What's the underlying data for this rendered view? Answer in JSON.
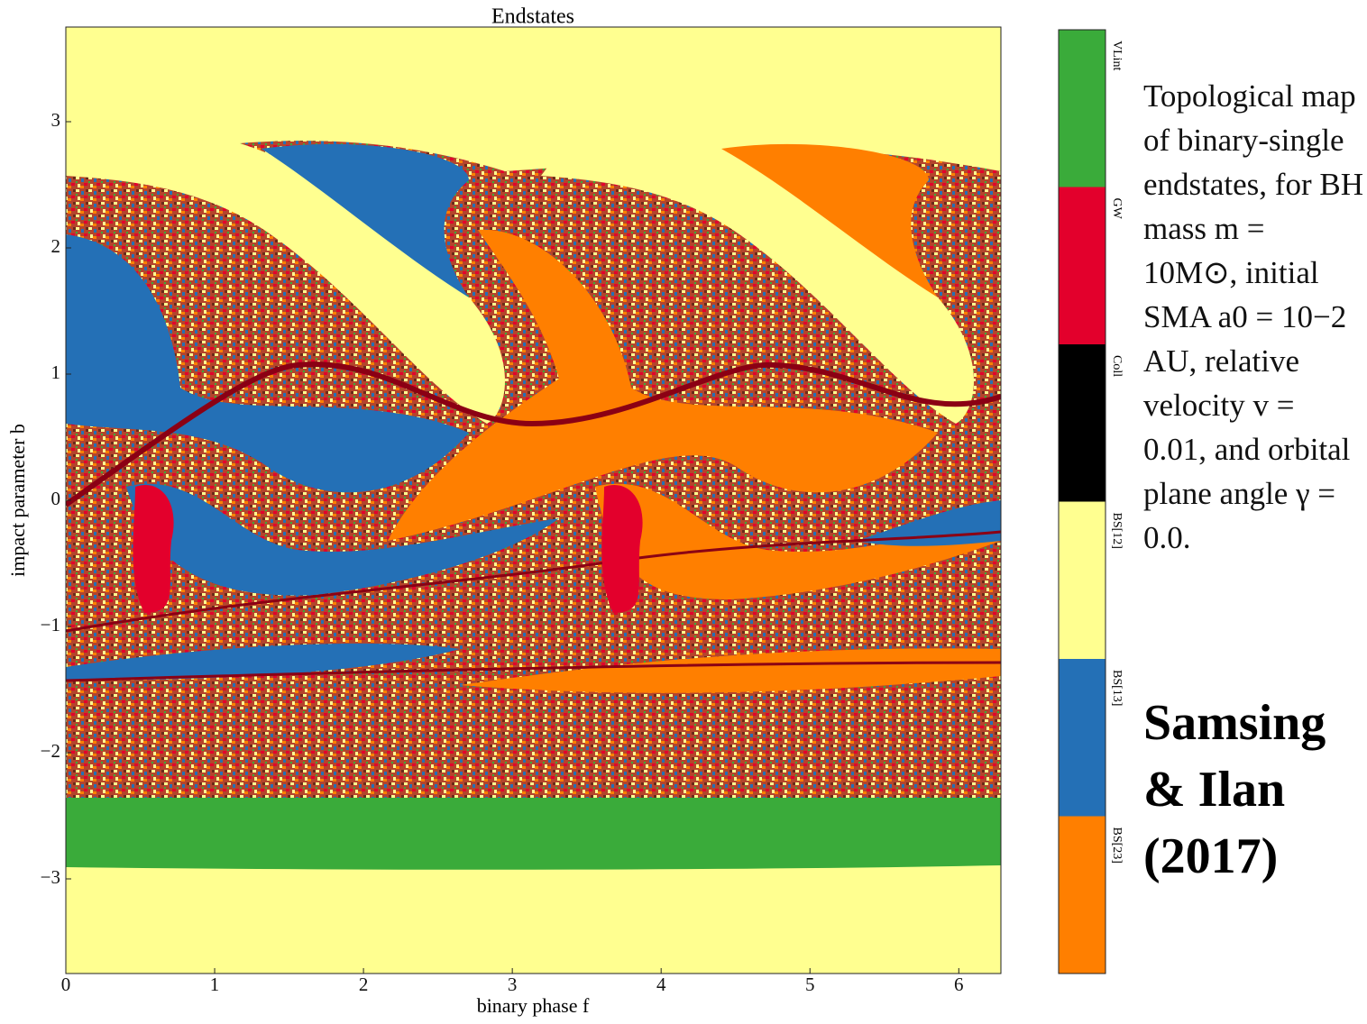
{
  "chart_data": {
    "type": "categorical_map",
    "title": "Endstates",
    "xlabel": "binary phase f",
    "ylabel": "impact parameter b",
    "xlim": [
      0,
      6.283
    ],
    "ylim": [
      -3.75,
      3.75
    ],
    "xticks": [
      0,
      1,
      2,
      3,
      4,
      5,
      6
    ],
    "yticks": [
      {
        "value": -3,
        "label": "−3"
      },
      {
        "value": -2,
        "label": "−2"
      },
      {
        "value": -1,
        "label": "−1"
      },
      0,
      1,
      2,
      3
    ],
    "categories": [
      "VLint",
      "GW",
      "Coll",
      "BS[12]",
      "BS[13]",
      "BS[23]"
    ],
    "colors": [
      "#3aab3a",
      "#e3002c",
      "#000000",
      "#ffff90",
      "#2470b6",
      "#ff7f00"
    ]
  },
  "caption": "Topological map of binary-single endstates, for BH mass m = 10M⊙, initial SMA a0 = 10−2 AU, relative velocity v = 0.01, and orbital plane angle γ = 0.0.",
  "credit": "Samsing & Ilan (2017)"
}
